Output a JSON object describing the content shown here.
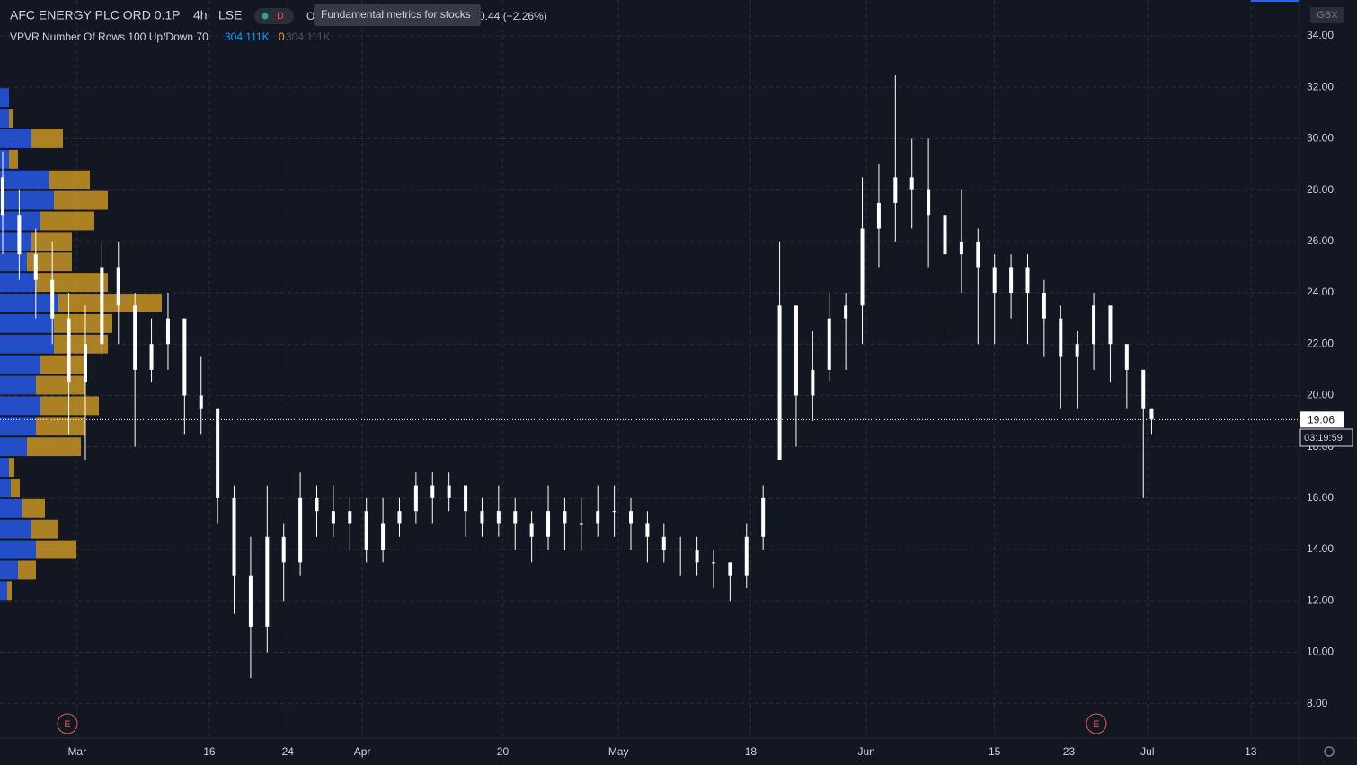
{
  "header": {
    "symbol": "AFC ENERGY PLC ORD 0.1P",
    "interval": "4h",
    "exchange": "LSE",
    "badge": "D",
    "open_label": "O",
    "change": "0.44 (−2.26%)",
    "tooltip": "Fundamental metrics for stocks",
    "currency": "GBX"
  },
  "indicator": {
    "name": "VPVR Number Of Rows 100 Up/Down 70",
    "up": "304.111K",
    "down": "0",
    "total": "304.111K"
  },
  "countdown": "03:19:59",
  "events": [
    "E",
    "E"
  ],
  "chart_data": {
    "type": "candlestick",
    "color": "#ffffff",
    "x": [
      0,
      4,
      8,
      12,
      16,
      20,
      24,
      28,
      32,
      36,
      40,
      44,
      48,
      52,
      56,
      60,
      64,
      68,
      72,
      76,
      80,
      84,
      88,
      92,
      96,
      100,
      104,
      108,
      112,
      116,
      120,
      124,
      128,
      132,
      136,
      140,
      144,
      148,
      152,
      156,
      160,
      164,
      168,
      172,
      176,
      180,
      184,
      188,
      192,
      196,
      200,
      204,
      208,
      212,
      216,
      220,
      224,
      228,
      232,
      236,
      240,
      244,
      248,
      252,
      256,
      260,
      264,
      268,
      272,
      276,
      278
    ],
    "open": [
      28.5,
      27,
      25.5,
      24.5,
      23,
      20.5,
      22,
      25,
      23.5,
      21,
      22,
      23,
      20,
      19.5,
      16,
      13,
      11,
      14.5,
      13.5,
      16,
      15.5,
      15,
      15.5,
      14,
      15,
      15.5,
      16.5,
      16,
      16.5,
      15.5,
      15,
      15.5,
      15,
      14.5,
      15.5,
      15,
      15,
      15.5,
      15.5,
      15,
      14.5,
      14,
      14,
      13.5,
      13.5,
      13,
      14.5,
      17.5,
      23.5,
      20,
      21,
      23,
      23.5,
      26.5,
      27.5,
      28.5,
      28,
      27,
      25.5,
      26,
      25,
      24,
      25,
      24,
      23,
      21.5,
      22,
      23.5,
      22,
      21,
      19.5
    ],
    "high": [
      29.5,
      28,
      26.5,
      26,
      24,
      23.5,
      26,
      26,
      24,
      23,
      24,
      23,
      21.5,
      19.5,
      16.5,
      14.5,
      16.5,
      15,
      17,
      16.5,
      16.5,
      16,
      16,
      16,
      16,
      17,
      17,
      17,
      16.5,
      16,
      16.5,
      16,
      15.5,
      16.5,
      16,
      16,
      16.5,
      16.5,
      16,
      15.5,
      15,
      14.5,
      14.5,
      14,
      13.5,
      15,
      16.5,
      26,
      23.5,
      22.5,
      24,
      24,
      28.5,
      29,
      32.5,
      30,
      30,
      27.5,
      28,
      26.5,
      25.5,
      25.5,
      25.5,
      24.5,
      23.5,
      22.5,
      24,
      23.5,
      22,
      21,
      19.5
    ],
    "low": [
      25.5,
      24.5,
      23,
      22,
      18.5,
      17.5,
      21.5,
      22,
      18,
      20.5,
      21,
      18.5,
      18.5,
      15,
      11.5,
      9,
      10,
      12,
      13,
      14.5,
      14.5,
      14,
      13.5,
      13.5,
      14.5,
      15,
      15,
      15.5,
      14.5,
      14.5,
      14.5,
      14,
      13.5,
      14,
      14,
      14,
      14.5,
      14.5,
      14,
      13.5,
      13.5,
      13,
      13,
      12.5,
      12,
      12.5,
      14,
      17.5,
      18,
      19,
      20.5,
      21,
      22,
      25,
      26,
      26.5,
      25,
      22.5,
      24,
      22,
      22,
      23,
      22,
      21.5,
      19.5,
      19.5,
      21,
      20.5,
      19.5,
      16,
      18.5
    ],
    "close": [
      27,
      25.5,
      24.5,
      23,
      20.5,
      22,
      25,
      23.5,
      21,
      22,
      23,
      20,
      19.5,
      16,
      13,
      11,
      14.5,
      13.5,
      16,
      15.5,
      15,
      15.5,
      14,
      15,
      15.5,
      16.5,
      16,
      16.5,
      15.5,
      15,
      15.5,
      15,
      14.5,
      15.5,
      15,
      15,
      15.5,
      15.5,
      15,
      14.5,
      14,
      14,
      13.5,
      13.5,
      13,
      14.5,
      16,
      23.5,
      20,
      21,
      23,
      23.5,
      26.5,
      27.5,
      28.5,
      28,
      27,
      25.5,
      26,
      25,
      24,
      25,
      24,
      23,
      21.5,
      22,
      23.5,
      22,
      21,
      19.5,
      19.06
    ],
    "xlim": [
      0,
      314
    ],
    "xticks": [
      {
        "value": 18,
        "label": "Mar"
      },
      {
        "value": 50,
        "label": "16"
      },
      {
        "value": 69,
        "label": "24"
      },
      {
        "value": 87,
        "label": "Apr"
      },
      {
        "value": 121,
        "label": "20"
      },
      {
        "value": 149,
        "label": "May"
      },
      {
        "value": 181,
        "label": "18"
      },
      {
        "value": 209,
        "label": "Jun"
      },
      {
        "value": 240,
        "label": "15"
      },
      {
        "value": 258,
        "label": "23"
      },
      {
        "value": 277,
        "label": "Jul"
      },
      {
        "value": 302,
        "label": "13"
      }
    ],
    "ylim": [
      6.66,
      35.4
    ],
    "yticks": [
      {
        "value": 8,
        "label": "8.00"
      },
      {
        "value": 10,
        "label": "10.00"
      },
      {
        "value": 12,
        "label": "12.00"
      },
      {
        "value": 14,
        "label": "14.00"
      },
      {
        "value": 16,
        "label": "16.00"
      },
      {
        "value": 18,
        "label": "18.00"
      },
      {
        "value": 20,
        "label": "20.00"
      },
      {
        "value": 22,
        "label": "22.00"
      },
      {
        "value": 24,
        "label": "24.00"
      },
      {
        "value": 26,
        "label": "26.00"
      },
      {
        "value": 28,
        "label": "28.00"
      },
      {
        "value": 30,
        "label": "30.00"
      },
      {
        "value": 32,
        "label": "32.00"
      },
      {
        "value": 34,
        "label": "34.00"
      }
    ],
    "grid": true,
    "last_price": 19.06,
    "volume_profile": {
      "prices": [
        12.4,
        13.2,
        14.0,
        14.8,
        15.6,
        16.4,
        17.2,
        18.0,
        18.8,
        19.6,
        20.4,
        21.2,
        22.0,
        22.8,
        23.6,
        24.4,
        25.2,
        26.0,
        26.8,
        27.6,
        28.4,
        29.2,
        30.0,
        30.8,
        31.6
      ],
      "up": [
        8,
        20,
        40,
        35,
        25,
        12,
        10,
        30,
        40,
        45,
        40,
        45,
        60,
        60,
        65,
        40,
        30,
        35,
        45,
        60,
        55,
        10,
        35,
        10,
        10
      ],
      "down": [
        5,
        20,
        45,
        30,
        25,
        10,
        6,
        60,
        55,
        65,
        55,
        50,
        60,
        65,
        115,
        80,
        50,
        45,
        60,
        60,
        45,
        10,
        35,
        5,
        0
      ],
      "up_color": "#2962ff",
      "down_color": "#e0a526",
      "xlim": [
        0,
        130
      ]
    }
  }
}
